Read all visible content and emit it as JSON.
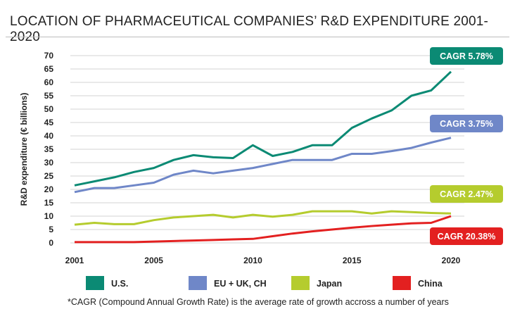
{
  "chart_data": {
    "type": "line",
    "title": "LOCATION OF PHARMACEUTICAL COMPANIES’ R&D EXPENDITURE 2001-2020",
    "ylabel": "R&D expenditure (€ billions)",
    "xlabel": "",
    "ylim": [
      0,
      70
    ],
    "yticks": [
      0,
      5,
      10,
      15,
      20,
      25,
      30,
      35,
      40,
      45,
      50,
      55,
      60,
      65,
      70
    ],
    "xticks": [
      2001,
      2005,
      2010,
      2015,
      2020
    ],
    "x": [
      2001,
      2002,
      2003,
      2004,
      2005,
      2006,
      2007,
      2008,
      2009,
      2010,
      2011,
      2012,
      2013,
      2014,
      2015,
      2016,
      2017,
      2018,
      2019,
      2020
    ],
    "grid": true,
    "legend_placement": "bottom",
    "series": [
      {
        "name": "U.S.",
        "color": "#0b8a74",
        "cagr": "CAGR 5.78%",
        "values": [
          21.5,
          23,
          24.5,
          26.5,
          28,
          31,
          32.8,
          32,
          31.7,
          36.5,
          32.5,
          34,
          36.5,
          36.5,
          43,
          46.5,
          49.5,
          55,
          57,
          64
        ]
      },
      {
        "name": "EU + UK, CH",
        "color": "#6f87c8",
        "cagr": "CAGR 3.75%",
        "values": [
          19,
          20.5,
          20.5,
          21.5,
          22.5,
          25.5,
          27,
          26,
          27,
          28,
          29.5,
          31,
          31,
          31,
          33.3,
          33.3,
          34.3,
          35.5,
          37.5,
          39.3
        ]
      },
      {
        "name": "Japan",
        "color": "#b5cc2e",
        "cagr": "CAGR 2.47%",
        "values": [
          6.8,
          7.5,
          7,
          7,
          8.5,
          9.5,
          10,
          10.5,
          9.5,
          10.5,
          9.8,
          10.5,
          11.8,
          11.8,
          11.8,
          11,
          11.8,
          11.5,
          11.2,
          11
        ]
      },
      {
        "name": "China",
        "color": "#e32020",
        "cagr": "CAGR 20.38%",
        "values": [
          0.3,
          0.3,
          0.3,
          0.3,
          0.5,
          0.7,
          0.9,
          1.1,
          1.3,
          1.5,
          2.5,
          3.5,
          4.3,
          5,
          5.7,
          6.3,
          6.8,
          7.3,
          7.5,
          10
        ]
      }
    ],
    "footnote": "*CAGR (Compound Annual Growth Rate) is the average rate of growth accross a number of years"
  }
}
